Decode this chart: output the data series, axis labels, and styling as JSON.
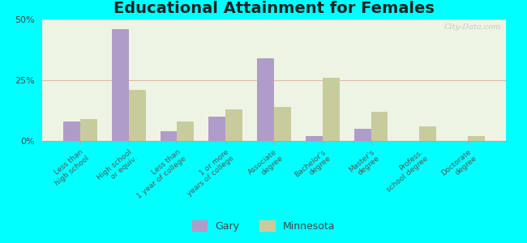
{
  "title": "Educational Attainment for Females",
  "categories": [
    "Less than\nhigh school",
    "High school\nor equiv.",
    "Less than\n1 year of college",
    "1 or more\nyears of college",
    "Associate\ndegree",
    "Bachelor's\ndegree",
    "Master's\ndegree",
    "Profess.\nschool degree",
    "Doctorate\ndegree"
  ],
  "gary_values": [
    8,
    46,
    4,
    10,
    34,
    2,
    5,
    0,
    0
  ],
  "minnesota_values": [
    9,
    21,
    8,
    13,
    14,
    26,
    12,
    6,
    2
  ],
  "gary_color": "#b09cc8",
  "minnesota_color": "#c8cc9c",
  "background_color": "#00ffff",
  "plot_bg_color": "#eef4e4",
  "ylim": [
    0,
    50
  ],
  "yticks": [
    0,
    25,
    50
  ],
  "ytick_labels": [
    "0%",
    "25%",
    "50%"
  ],
  "legend_gary": "Gary",
  "legend_minnesota": "Minnesota",
  "title_fontsize": 14,
  "label_fontsize": 6.5,
  "legend_fontsize": 9,
  "bar_width": 0.35,
  "watermark": "City-Data.com"
}
